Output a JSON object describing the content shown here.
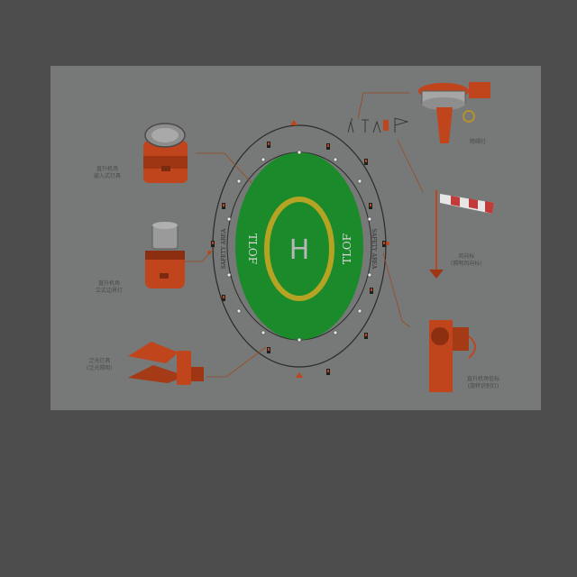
{
  "diagram": {
    "pad_letter": "H",
    "tlof_left": "TLOF",
    "tlof_right": "TLOF",
    "safety_area_left": "SAFETY AREA",
    "safety_area_right": "SAFETY AREA",
    "captions": {
      "top_left": [
        "直升机场",
        "嵌入式灯具"
      ],
      "mid_left": [
        "直升机场",
        "立式边界灯"
      ],
      "bottom_left": [
        "泛光灯具",
        "(泛光照明)"
      ],
      "top_right": [
        "障碍灯"
      ],
      "mid_right": [
        "风向标",
        "(照明风向标)"
      ],
      "bottom_right": [
        "直升机场信标",
        "(旋转识别灯)"
      ]
    },
    "colors": {
      "pad_green": "#1a8a2a",
      "circle_yellow": "#b5a324",
      "fixture_orange": "#c0451c",
      "windsock_red": "#c23a3a"
    }
  }
}
